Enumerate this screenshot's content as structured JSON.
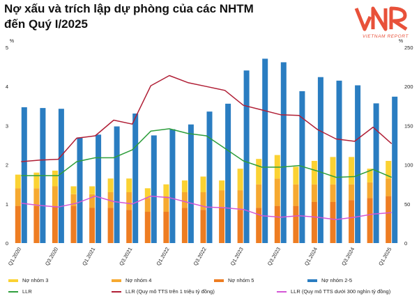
{
  "title_line1": "Nợ xấu và trích lập dự phòng của các NHTM",
  "title_line2": "đến Quý I/2025",
  "logo": {
    "mark": "VNR",
    "subtitle": "VIETNAM REPORT",
    "color": "#e8513a"
  },
  "chart_data": {
    "type": "bar",
    "quarters": [
      "Q1.2020",
      "Q2.2020",
      "Q3.2020",
      "Q4.2020",
      "Q1.2021",
      "Q2.2021",
      "Q3.2021",
      "Q4.2021",
      "Q1.2022",
      "Q2.2022",
      "Q3.2022",
      "Q4.2022",
      "Q1.2023",
      "Q2.2023",
      "Q3.2023",
      "Q4.2023",
      "Q1.2024",
      "Q2.2024",
      "Q3.2024",
      "Q4.2024",
      "Q1.2025"
    ],
    "x_tick_labels": [
      "Q1.2020",
      "Q3.2020",
      "Q1.2021",
      "Q3.2021",
      "Q1.2022",
      "Q3.2022",
      "Q1.2023",
      "Q3.2023",
      "Q1.2024",
      "Q3.2024",
      "Q1.2025"
    ],
    "left_axis": {
      "unit": "%",
      "min": 0,
      "max": 5,
      "ticks": [
        0,
        1,
        2,
        3,
        4,
        5
      ]
    },
    "right_axis": {
      "unit": "%",
      "min": 0,
      "max": 250,
      "ticks": [
        0,
        50,
        100,
        150,
        200,
        250
      ]
    },
    "stacked_series": [
      {
        "name": "Nợ nhóm 5",
        "color": "#ee7d22",
        "values": [
          0.95,
          0.95,
          0.95,
          0.95,
          0.9,
          0.9,
          0.85,
          0.8,
          0.8,
          0.9,
          0.85,
          0.9,
          0.85,
          0.9,
          0.95,
          0.95,
          1.05,
          1.05,
          1.1,
          1.15,
          1.2
        ]
      },
      {
        "name": "Nợ nhóm 4",
        "color": "#f6a930",
        "values": [
          0.45,
          0.45,
          0.5,
          0.3,
          0.35,
          0.4,
          0.45,
          0.35,
          0.4,
          0.4,
          0.45,
          0.45,
          0.5,
          0.6,
          0.7,
          0.55,
          0.45,
          0.45,
          0.4,
          0.4,
          0.45
        ]
      },
      {
        "name": "Nợ nhóm 3",
        "color": "#fbd233",
        "values": [
          0.35,
          0.4,
          0.4,
          0.2,
          0.2,
          0.35,
          0.35,
          0.25,
          0.3,
          0.3,
          0.4,
          0.25,
          0.55,
          0.65,
          0.6,
          0.45,
          0.6,
          0.7,
          0.7,
          0.35,
          0.45
        ]
      }
    ],
    "npl_series": {
      "name": "Nợ nhóm 2-5",
      "color": "#2a7dc1",
      "values": [
        3.47,
        3.45,
        3.43,
        2.7,
        2.77,
        2.98,
        3.31,
        2.75,
        2.91,
        3.03,
        3.36,
        3.56,
        4.41,
        4.71,
        4.62,
        3.88,
        4.24,
        4.15,
        4.03,
        3.57,
        3.74
      ]
    },
    "line_series": [
      {
        "name": "LLR",
        "color": "#2e9e3c",
        "values": [
          86,
          86,
          86,
          104,
          109,
          109,
          119,
          143,
          146,
          140,
          137,
          121,
          105,
          97,
          97,
          99,
          92,
          84,
          85,
          94,
          84
        ]
      },
      {
        "name": "LLR (Quy mô TTS trên 1 triệu tỷ đồng)",
        "color": "#b01e35",
        "values": [
          104,
          106,
          107,
          134,
          137,
          157,
          152,
          201,
          214,
          205,
          200,
          195,
          176,
          170,
          164,
          163,
          145,
          133,
          130,
          148,
          127
        ]
      },
      {
        "name": "LLR (Quy mô TTS dưới 300 nghìn tỷ đồng)",
        "color": "#d456d6",
        "values": [
          51,
          48,
          46,
          51,
          60,
          53,
          50,
          60,
          58,
          52,
          46,
          45,
          43,
          35,
          33,
          35,
          33,
          30,
          33,
          37,
          39
        ]
      }
    ]
  },
  "legend": [
    {
      "label": "Nợ nhóm 3",
      "kind": "box",
      "color": "#fbd233"
    },
    {
      "label": "Nợ nhóm 4",
      "kind": "box",
      "color": "#f6a930"
    },
    {
      "label": "Nợ nhóm 5",
      "kind": "box",
      "color": "#ee7d22"
    },
    {
      "label": "Nợ nhóm 2-5",
      "kind": "box",
      "color": "#2a7dc1"
    },
    {
      "label": "LLR",
      "kind": "line",
      "color": "#2e9e3c"
    },
    {
      "label": "LLR (Quy mô TTS trên 1 triệu tỷ đồng)",
      "kind": "line",
      "color": "#b01e35"
    },
    {
      "label": "LLR (Quy mô TTS dưới 300 nghìn tỷ đồng)",
      "kind": "line",
      "color": "#d456d6"
    }
  ]
}
